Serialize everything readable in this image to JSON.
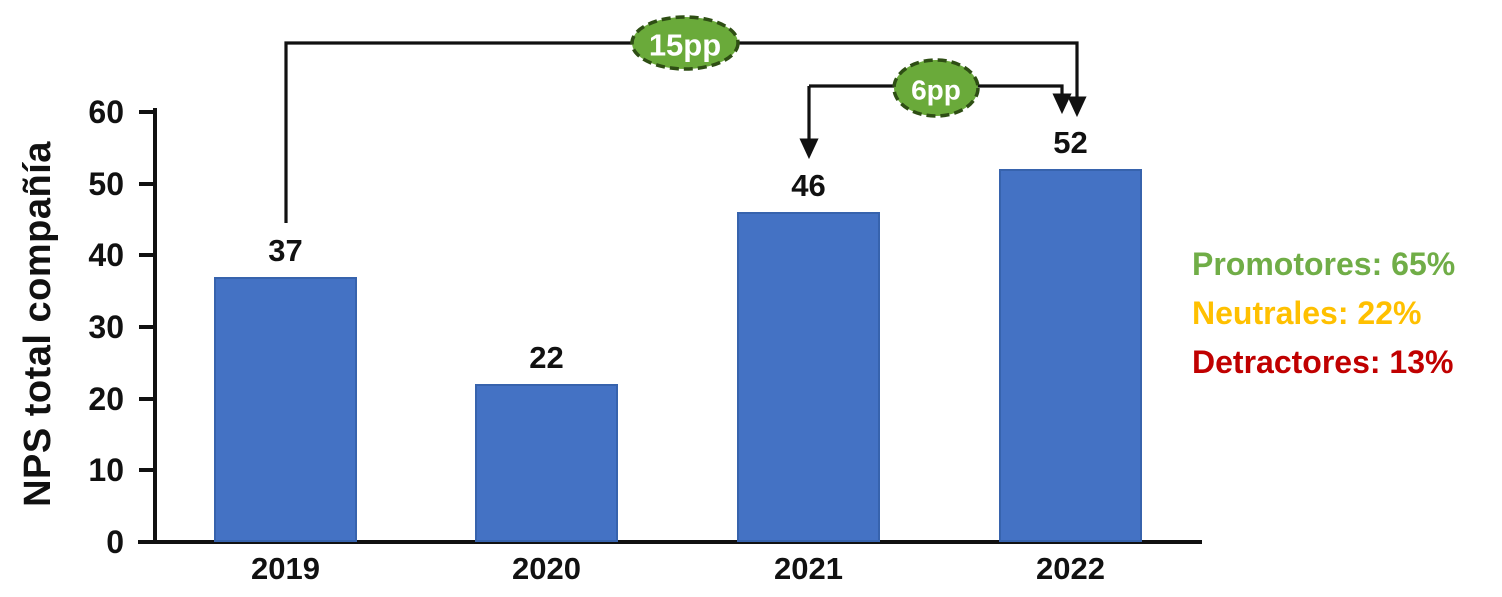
{
  "chart_data": {
    "type": "bar",
    "title": "",
    "ylabel": "NPS total compañía",
    "xlabel": "",
    "categories": [
      "2019",
      "2020",
      "2021",
      "2022"
    ],
    "values": [
      37,
      22,
      46,
      52
    ],
    "yticks": [
      0,
      10,
      20,
      30,
      40,
      50,
      60
    ],
    "ylim": [
      0,
      60
    ],
    "grid": "off",
    "bar_color": "#4472c4",
    "bar_border_color": "#3763ad",
    "axis_color": "#111111",
    "annotations": [
      {
        "label": "15pp",
        "from": "2019",
        "to": "2022",
        "shape": "green-oval"
      },
      {
        "label": "6pp",
        "from": "2021",
        "to": "2022",
        "shape": "green-oval"
      }
    ],
    "annotation_fill": "#6aaa3a",
    "annotation_stroke": "#2e4e14",
    "legend_position": "right",
    "legend": [
      {
        "text": "Promotores: 65%",
        "color": "#70ad47"
      },
      {
        "text": "Neutrales: 22%",
        "color": "#ffc000"
      },
      {
        "text": "Detractores: 13%",
        "color": "#c00000"
      }
    ]
  }
}
